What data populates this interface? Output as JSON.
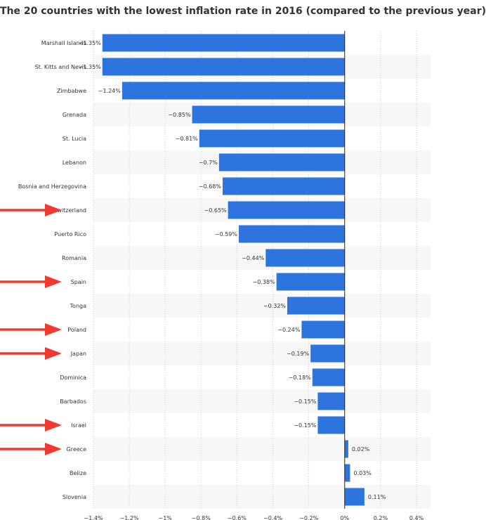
{
  "title": "The 20 countries with the lowest inflation rate in 2016 (compared to the previous year)",
  "colors": {
    "bar": "#2d74de",
    "arrow": "#f03a2f",
    "band": "#f7f7f7",
    "grid": "#cfcfcf",
    "zero_line": "#222222",
    "label": "#333333"
  },
  "chart_data": {
    "type": "bar",
    "orientation": "horizontal",
    "title": "The 20 countries with the lowest inflation rate in 2016 (compared to the previous year)",
    "xlabel": "",
    "ylabel": "",
    "xlim": [
      -1.4,
      0.4
    ],
    "grid": true,
    "x_ticks": [
      {
        "value": -1.4,
        "label": "−1.4%"
      },
      {
        "value": -1.2,
        "label": "−1.2%"
      },
      {
        "value": -1.0,
        "label": "−1%"
      },
      {
        "value": -0.8,
        "label": "−0.8%"
      },
      {
        "value": -0.6,
        "label": "−0.6%"
      },
      {
        "value": -0.4,
        "label": "−0.4%"
      },
      {
        "value": -0.2,
        "label": "−0.2%"
      },
      {
        "value": 0,
        "label": "0%"
      },
      {
        "value": 0.2,
        "label": "0.2%"
      },
      {
        "value": 0.4,
        "label": "0.4%"
      }
    ],
    "categories": [
      "Marshall Islands",
      "St. Kitts and Nevis",
      "Zimbabwe",
      "Grenada",
      "St. Lucia",
      "Lebanon",
      "Bosnia and Herzegovina",
      "Switzerland",
      "Puerto Rico",
      "Romania",
      "Spain",
      "Tonga",
      "Poland",
      "Japan",
      "Dominica",
      "Barbados",
      "Israel",
      "Greece",
      "Belize",
      "Slovenia"
    ],
    "values": [
      -1.35,
      -1.35,
      -1.24,
      -0.85,
      -0.81,
      -0.7,
      -0.68,
      -0.65,
      -0.59,
      -0.44,
      -0.38,
      -0.32,
      -0.24,
      -0.19,
      -0.18,
      -0.15,
      -0.15,
      0.02,
      0.03,
      0.11
    ],
    "value_labels": [
      "−1.35%",
      "−1.35%",
      "−1.24%",
      "−0.85%",
      "−0.81%",
      "−0.7%",
      "−0.68%",
      "−0.65%",
      "−0.59%",
      "−0.44%",
      "−0.38%",
      "−0.32%",
      "−0.24%",
      "−0.19%",
      "−0.18%",
      "−0.15%",
      "−0.15%",
      "0.02%",
      "0.03%",
      "0.11%"
    ],
    "highlighted": [
      "Switzerland",
      "Spain",
      "Poland",
      "Japan",
      "Israel",
      "Greece"
    ]
  }
}
